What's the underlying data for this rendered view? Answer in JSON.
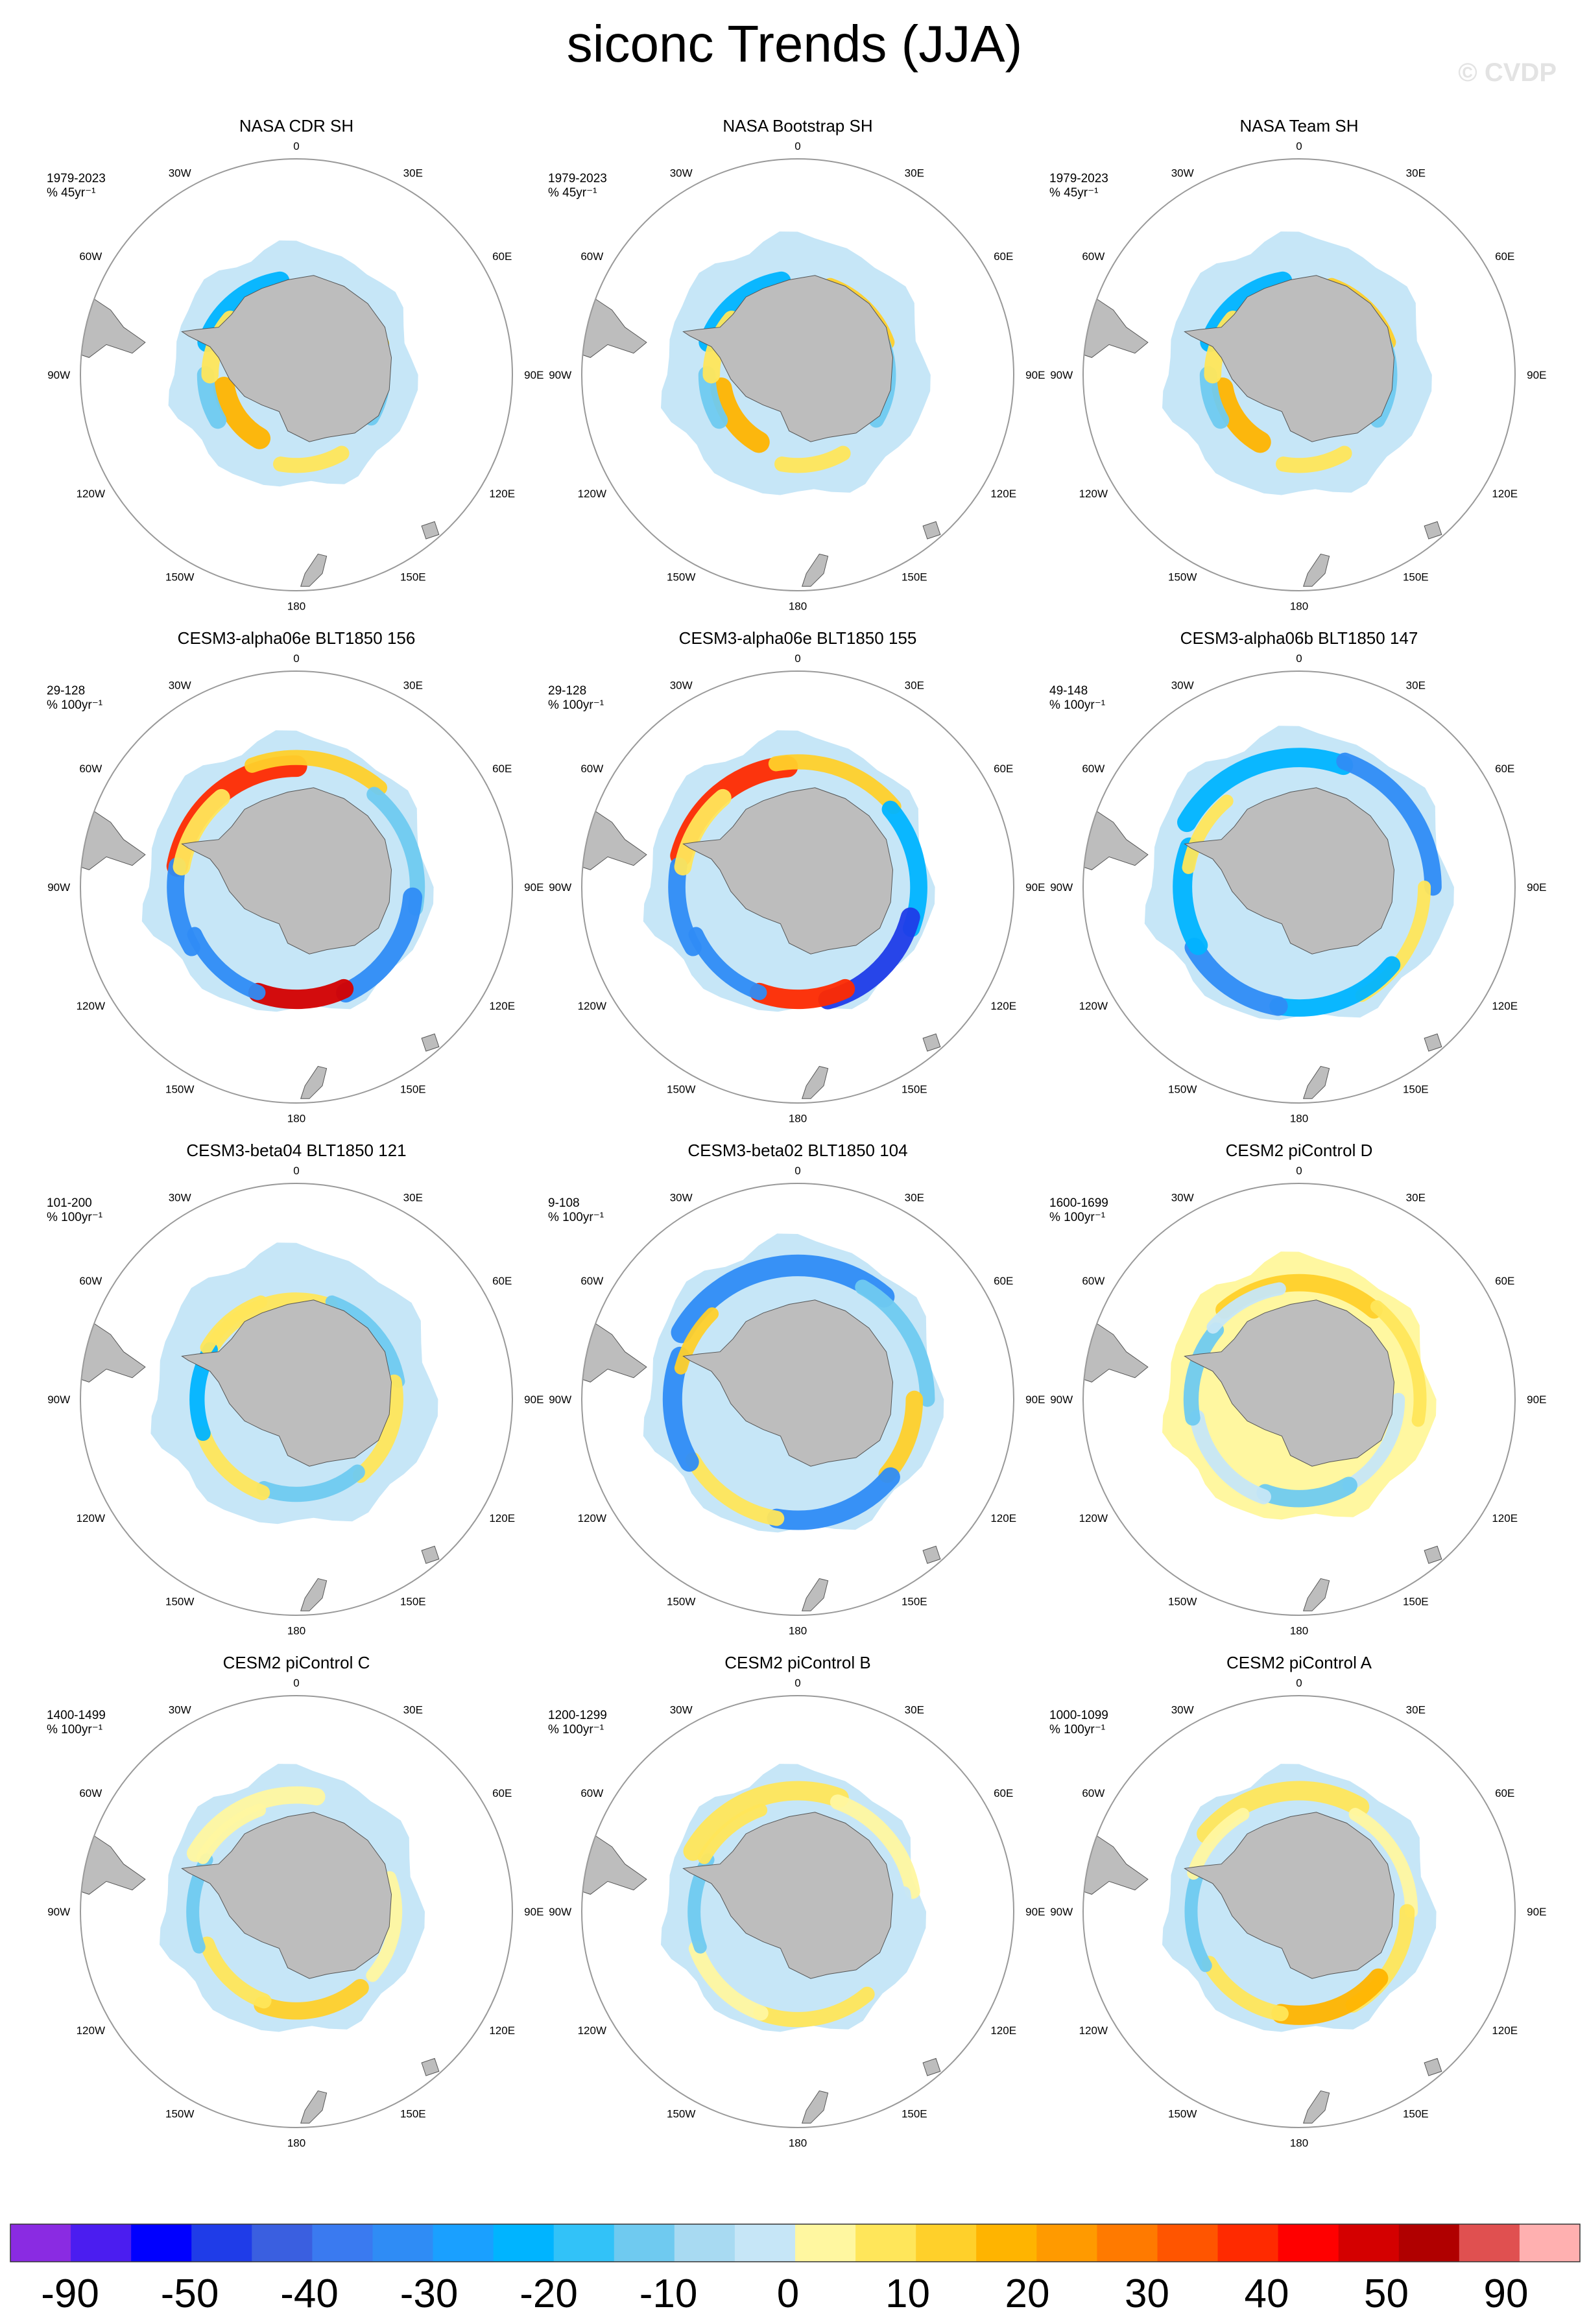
{
  "title": "siconc Trends (JJA)",
  "watermark": "© CVDP",
  "meridian_labels": {
    "top": "0",
    "bottom": "180",
    "30w": "30W",
    "30e": "30E",
    "60w": "60W",
    "60e": "60E",
    "90w": "90W",
    "90e": "90E",
    "120w": "120W",
    "120e": "120E",
    "150w": "150W",
    "150e": "150E"
  },
  "colors": {
    "land": "#bdbdbd",
    "circle": "#999999",
    "scale": [
      "#8a2be2",
      "#4b1df0",
      "#0000ff",
      "#1f3ce8",
      "#3a5fe0",
      "#3a7af0",
      "#2f8cf5",
      "#1aa0ff",
      "#00b4ff",
      "#32c2f8",
      "#6fcaf0",
      "#a8daf2",
      "#c6e6f7",
      "#fff7a0",
      "#ffe65a",
      "#ffd02a",
      "#ffb400",
      "#ff9a00",
      "#ff7a00",
      "#ff5500",
      "#ff2a00",
      "#ff0000",
      "#d40000",
      "#b00000",
      "#e05050",
      "#ffb0b0"
    ]
  },
  "panels": [
    {
      "name": "NASA CDR SH",
      "period": "1979-2023",
      "units": "% 45yr⁻¹",
      "pattern": "obs_cdr"
    },
    {
      "name": "NASA Bootstrap SH",
      "period": "1979-2023",
      "units": "% 45yr⁻¹",
      "pattern": "obs_boot"
    },
    {
      "name": "NASA Team SH",
      "period": "1979-2023",
      "units": "% 45yr⁻¹",
      "pattern": "obs_team"
    },
    {
      "name": "CESM3-alpha06e BLT1850 156",
      "period": "29-128",
      "units": "% 100yr⁻¹",
      "pattern": "alpha156"
    },
    {
      "name": "CESM3-alpha06e BLT1850 155",
      "period": "29-128",
      "units": "% 100yr⁻¹",
      "pattern": "alpha155"
    },
    {
      "name": "CESM3-alpha06b BLT1850 147",
      "period": "49-148",
      "units": "% 100yr⁻¹",
      "pattern": "alpha147"
    },
    {
      "name": "CESM3-beta04 BLT1850 121",
      "period": "101-200",
      "units": "% 100yr⁻¹",
      "pattern": "beta121"
    },
    {
      "name": "CESM3-beta02 BLT1850 104",
      "period": "9-108",
      "units": "% 100yr⁻¹",
      "pattern": "beta104"
    },
    {
      "name": "CESM2 piControl D",
      "period": "1600-1699",
      "units": "% 100yr⁻¹",
      "pattern": "picD"
    },
    {
      "name": "CESM2 piControl C",
      "period": "1400-1499",
      "units": "% 100yr⁻¹",
      "pattern": "picC"
    },
    {
      "name": "CESM2 piControl B",
      "period": "1200-1299",
      "units": "% 100yr⁻¹",
      "pattern": "picB"
    },
    {
      "name": "CESM2 piControl A",
      "period": "1000-1099",
      "units": "% 100yr⁻¹",
      "pattern": "picA"
    }
  ],
  "colorbar": {
    "labels": [
      "-90",
      "-50",
      "-40",
      "-30",
      "-20",
      "-10",
      "0",
      "10",
      "20",
      "30",
      "40",
      "50",
      "90"
    ]
  }
}
